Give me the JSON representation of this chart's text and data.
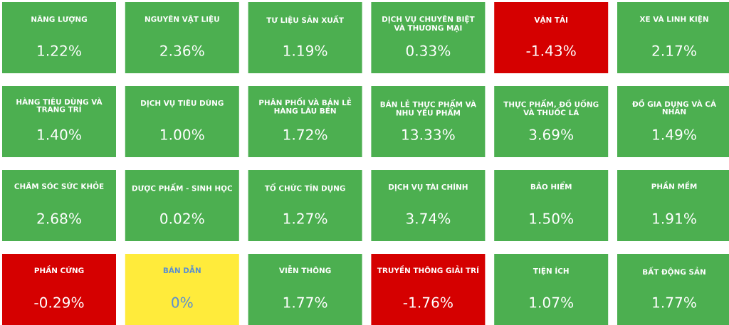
{
  "chart_data": {
    "type": "other",
    "categories": [
      "NĂNG LƯỢNG",
      "NGUYÊN VẬT LIỆU",
      "TƯ LIỆU SẢN XUẤT",
      "DỊCH VỤ CHUYÊN BIỆT VÀ THƯƠNG MẠI",
      "VẬN TẢI",
      "XE VÀ LINH KIỆN",
      "HÀNG TIÊU DÙNG VÀ TRANG TRÍ",
      "DỊCH VỤ TIÊU DÙNG",
      "PHÂN PHỐI VÀ BÁN LẺ HÀNG LÂU BỀN",
      "BÁN LẺ THỰC PHẨM VÀ NHU YẾU PHẨM",
      "THỰC PHẨM, ĐỒ UỐNG VÀ THUỐC LÁ",
      "ĐỒ GIA DỤNG VÀ CÁ NHÂN",
      "CHĂM SÓC SỨC KHỎE",
      "DƯỢC PHẨM - SINH HỌC",
      "TỔ CHỨC TÍN DỤNG",
      "DỊCH VỤ TÀI CHÍNH",
      "BẢO HIỂM",
      "PHẦN MỀM",
      "PHẦN CỨNG",
      "BÁN DẪN",
      "VIỄN THÔNG",
      "TRUYỀN THÔNG GIẢI TRÍ",
      "TIỆN ÍCH",
      "BẤT ĐỘNG SẢN"
    ],
    "values": [
      1.22,
      2.36,
      1.19,
      0.33,
      -1.43,
      2.17,
      1.4,
      1.0,
      1.72,
      13.33,
      3.69,
      1.49,
      2.68,
      0.02,
      1.27,
      3.74,
      1.5,
      1.91,
      -0.29,
      0,
      1.77,
      -1.76,
      1.07,
      1.77
    ],
    "value_labels": [
      "1.22%",
      "2.36%",
      "1.19%",
      "0.33%",
      "-1.43%",
      "2.17%",
      "1.40%",
      "1.00%",
      "1.72%",
      "13.33%",
      "3.69%",
      "1.49%",
      "2.68%",
      "0.02%",
      "1.27%",
      "3.74%",
      "1.50%",
      "1.91%",
      "-0.29%",
      "0%",
      "1.77%",
      "-1.76%",
      "1.07%",
      "1.77%"
    ],
    "colors": [
      "#4caf50",
      "#4caf50",
      "#4caf50",
      "#4caf50",
      "#d50000",
      "#4caf50",
      "#4caf50",
      "#4caf50",
      "#4caf50",
      "#4caf50",
      "#4caf50",
      "#4caf50",
      "#4caf50",
      "#4caf50",
      "#4caf50",
      "#4caf50",
      "#4caf50",
      "#4caf50",
      "#d50000",
      "#ffeb3b",
      "#4caf50",
      "#d50000",
      "#4caf50",
      "#4caf50"
    ]
  }
}
